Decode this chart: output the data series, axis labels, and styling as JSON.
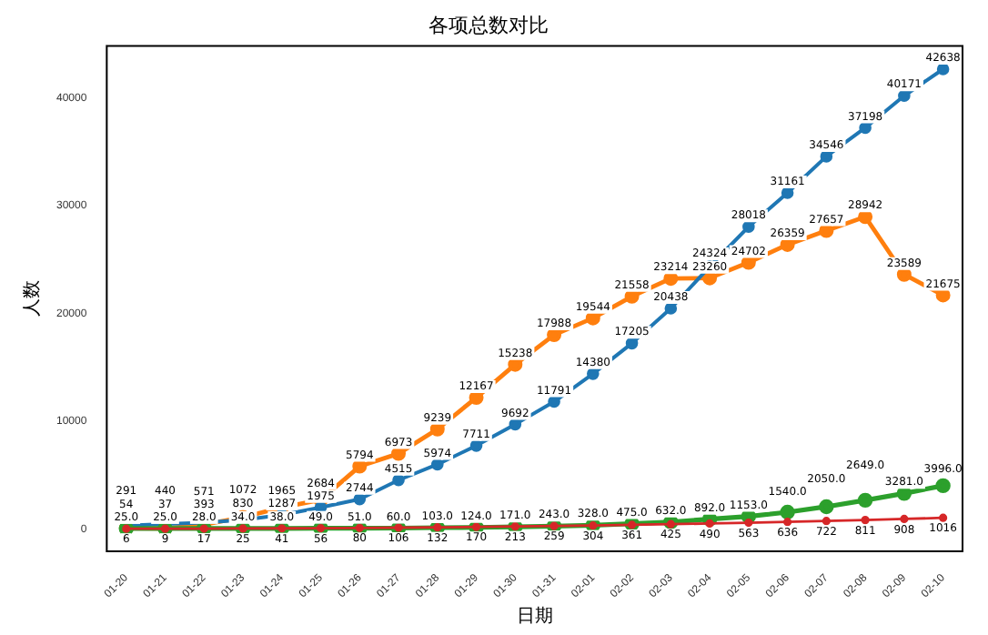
{
  "chart_data": {
    "type": "line",
    "title": "各项总数对比",
    "xlabel": "日期",
    "ylabel": "人数",
    "categories": [
      "01-20",
      "01-21",
      "01-22",
      "01-23",
      "01-24",
      "01-25",
      "01-26",
      "01-27",
      "01-28",
      "01-29",
      "01-30",
      "01-31",
      "02-01",
      "02-02",
      "02-03",
      "02-04",
      "02-05",
      "02-06",
      "02-07",
      "02-08",
      "02-09",
      "02-10"
    ],
    "ylim": [
      -2100,
      44800
    ],
    "yticks": [
      0,
      10000,
      20000,
      30000,
      40000
    ],
    "grid": false,
    "legend": false,
    "marker": "circle",
    "line_style": "solid",
    "data_labels": true,
    "series": [
      {
        "color": "#1f77b4",
        "values": [
          291,
          440,
          571,
          830,
          1287,
          1975,
          2744,
          4515,
          5974,
          7711,
          9692,
          11791,
          14380,
          17205,
          20438,
          24324,
          28018,
          31161,
          34546,
          37198,
          40171,
          42638
        ]
      },
      {
        "color": "#ff7f0e",
        "values": [
          54,
          37,
          393,
          1072,
          1965,
          2684,
          5794,
          6973,
          9239,
          12167,
          15238,
          17988,
          19544,
          21558,
          23214,
          23260,
          24702,
          26359,
          27657,
          28942,
          23589,
          21675
        ]
      },
      {
        "color": "#2ca02c",
        "values": [
          25,
          25,
          28,
          34,
          38,
          49,
          51,
          60,
          103,
          124,
          171,
          243,
          328,
          475,
          632,
          892,
          1153,
          1540,
          2050,
          2649,
          3281,
          3996
        ],
        "value_labels": [
          "25.0",
          "25.0",
          "28.0",
          "34.0",
          "38.0",
          "49.0",
          "51.0",
          "60.0",
          "103.0",
          "124.0",
          "171.0",
          "243.0",
          "328.0",
          "475.0",
          "632.0",
          "892.0",
          "1153.0",
          "1540.0",
          "2050.0",
          "2649.0",
          "3281.0",
          "3996.0"
        ]
      },
      {
        "color": "#d62728",
        "values": [
          6,
          9,
          17,
          25,
          41,
          56,
          80,
          106,
          132,
          170,
          213,
          259,
          304,
          361,
          425,
          490,
          563,
          636,
          722,
          811,
          908,
          1016
        ]
      }
    ]
  }
}
